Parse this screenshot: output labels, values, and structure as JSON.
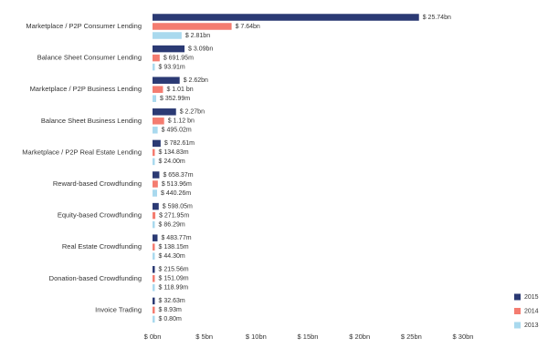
{
  "chart_data": {
    "type": "bar",
    "orientation": "horizontal",
    "categories": [
      "Marketplace / P2P Consumer Lending",
      "Balance Sheet Consumer Lending",
      "Marketplace / P2P Business Lending",
      "Balance Sheet Business Lending",
      "Marketplace / P2P Real Estate Lending",
      "Reward-based Crowdfunding",
      "Equity-based Crowdfunding",
      "Real Estate Crowdfunding",
      "Donation-based Crowdfunding",
      "Invoice Trading"
    ],
    "series": [
      {
        "name": "2015",
        "color": "#2b3a74",
        "values": [
          25.74,
          3.09,
          2.62,
          2.27,
          0.78261,
          0.65837,
          0.59805,
          0.48377,
          0.21556,
          0.03263
        ],
        "value_labels": [
          "$ 25.74bn",
          "$ 3.09bn",
          "$ 2.62bn",
          "$ 2.27bn",
          "$ 782.61m",
          "$ 658.37m",
          "$ 598.05m",
          "$ 483.77m",
          "$ 215.56m",
          "$ 32.63m"
        ]
      },
      {
        "name": "2014",
        "color": "#f47c70",
        "values": [
          7.64,
          0.69195,
          1.01,
          1.12,
          0.13483,
          0.51396,
          0.27195,
          0.13815,
          0.15109,
          0.00893
        ],
        "value_labels": [
          "$ 7.64bn",
          "$ 691.95m",
          "$ 1.01 bn",
          "$ 1.12 bn",
          "$ 134.83m",
          "$ 513.96m",
          "$ 271.95m",
          "$ 138.15m",
          "$ 151.09m",
          "$ 8.93m"
        ]
      },
      {
        "name": "2013",
        "color": "#a9d9ee",
        "values": [
          2.81,
          0.09391,
          0.35299,
          0.49502,
          0.024,
          0.44026,
          0.08629,
          0.0443,
          0.11899,
          0.0008
        ],
        "value_labels": [
          "$ 2.81bn",
          "$ 93.91m",
          "$ 352.99m",
          "$ 495.02m",
          "$ 24.00m",
          "$ 440.26m",
          "$ 86.29m",
          "$ 44.30m",
          "$ 118.99m",
          "$ 0.80m"
        ]
      }
    ],
    "xlim": [
      0,
      30
    ],
    "xticks": [
      {
        "value": 0,
        "label": "$ 0bn"
      },
      {
        "value": 5,
        "label": "$ 5bn"
      },
      {
        "value": 10,
        "label": "$ 10bn"
      },
      {
        "value": 15,
        "label": "$ 15bn"
      },
      {
        "value": 20,
        "label": "$ 20bn"
      },
      {
        "value": 25,
        "label": "$ 25bn"
      },
      {
        "value": 30,
        "label": "$ 30bn"
      }
    ],
    "legend": "bottom-right"
  }
}
